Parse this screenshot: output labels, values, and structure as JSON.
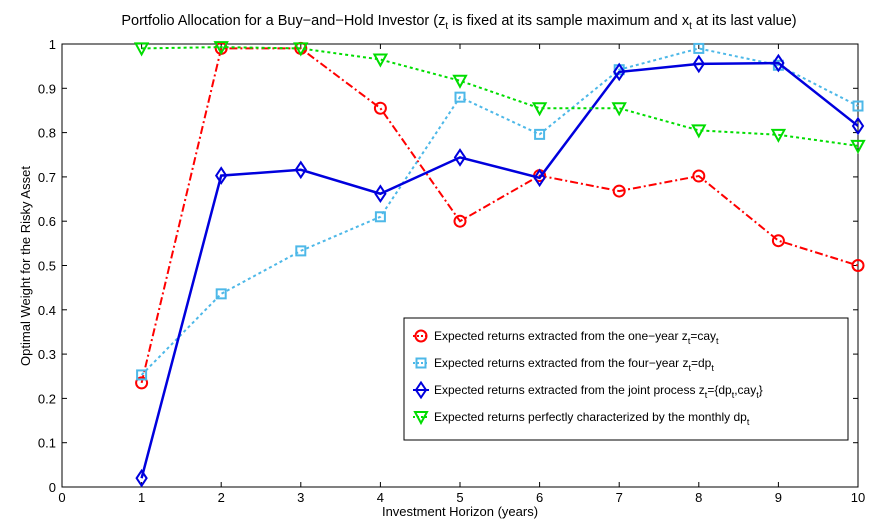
{
  "chart_data": {
    "type": "line",
    "title": "Portfolio Allocation for a Buy−and−Hold Investor (z_t is fixed at its sample maximum and x_t at its last value)",
    "xlabel": "Investment Horizon (years)",
    "ylabel": "Optimal Weight for the Risky Asset",
    "xlim": [
      0,
      10
    ],
    "ylim": [
      0,
      1
    ],
    "x_ticks": [
      "0",
      "1",
      "2",
      "3",
      "4",
      "5",
      "6",
      "7",
      "8",
      "9",
      "10"
    ],
    "y_ticks": [
      "0",
      "0.1",
      "0.2",
      "0.3",
      "0.4",
      "0.5",
      "0.6",
      "0.7",
      "0.8",
      "0.9",
      "1"
    ],
    "grid": false,
    "legend_position": "bottom-right",
    "x": [
      1,
      2,
      3,
      4,
      5,
      6,
      7,
      8,
      9,
      10
    ],
    "series": [
      {
        "name": "Expected returns extracted from the one−year z_t=cay_t",
        "values": [
          0.235,
          0.99,
          0.99,
          0.855,
          0.6,
          0.703,
          0.668,
          0.702,
          0.556,
          0.5
        ],
        "color": "#ff0000",
        "line_style": "dash-dot",
        "marker": "circle"
      },
      {
        "name": "Expected returns extracted from the four−year z_t=dp_t",
        "values": [
          0.253,
          0.436,
          0.533,
          0.61,
          0.88,
          0.796,
          0.942,
          0.99,
          0.952,
          0.86
        ],
        "color": "#4db8e8",
        "line_style": "dotted",
        "marker": "square"
      },
      {
        "name": "Expected returns extracted from the joint process z_t={dp_t,cay_t}",
        "values": [
          0.02,
          0.703,
          0.716,
          0.662,
          0.744,
          0.698,
          0.937,
          0.955,
          0.957,
          0.815
        ],
        "color": "#0000dd",
        "line_style": "solid",
        "marker": "diamond"
      },
      {
        "name": "Expected returns perfectly characterized by the monthly dp_t",
        "values": [
          0.99,
          0.993,
          0.99,
          0.965,
          0.917,
          0.855,
          0.855,
          0.805,
          0.795,
          0.77
        ],
        "color": "#00dd00",
        "line_style": "dotted",
        "marker": "triangle-down"
      }
    ]
  }
}
